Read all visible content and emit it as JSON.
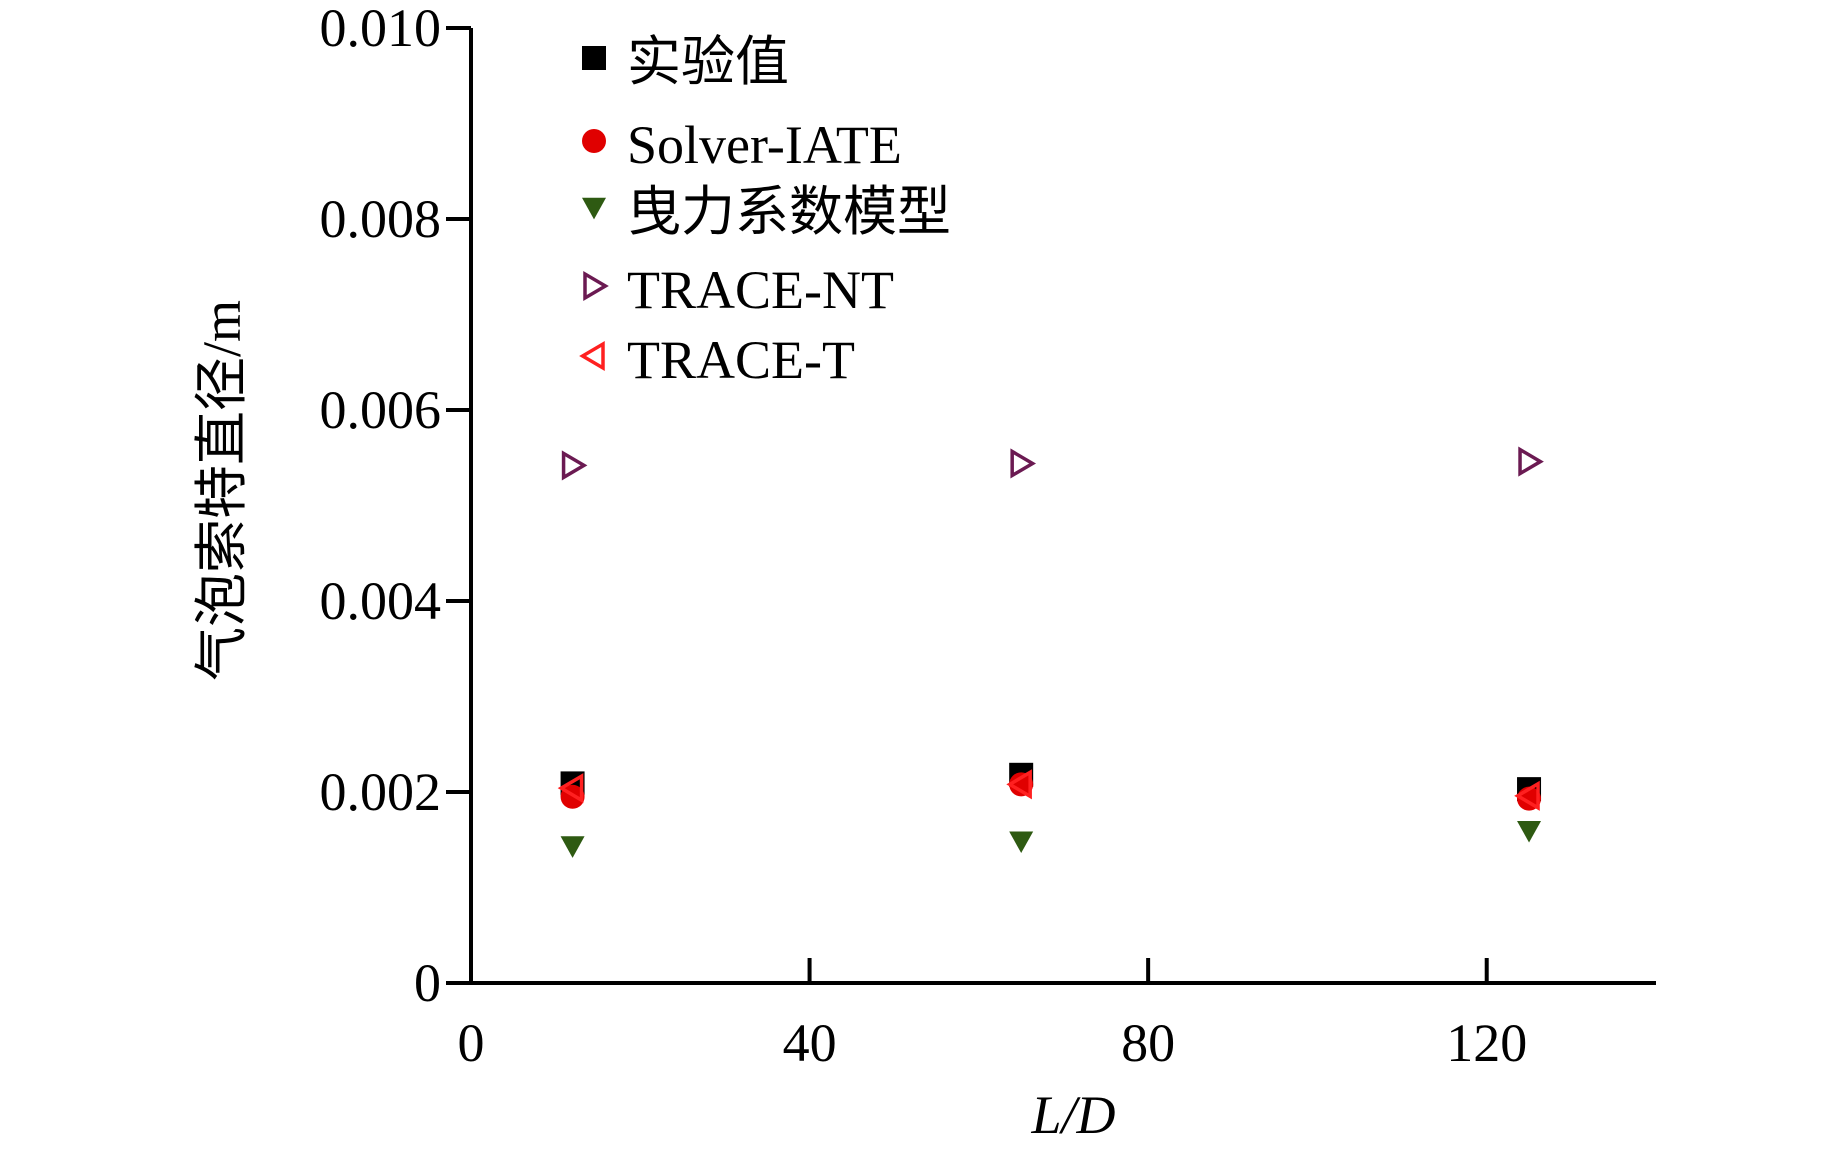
{
  "chart_data": {
    "type": "scatter",
    "xlabel": "L/D",
    "ylabel": "气泡索特直径/m",
    "xlim": [
      0,
      140
    ],
    "ylim": [
      0,
      0.01
    ],
    "x_ticks": [
      0,
      40,
      80,
      120
    ],
    "x_tick_labels": [
      "0",
      "40",
      "80",
      "120"
    ],
    "y_ticks": [
      0,
      0.002,
      0.004,
      0.006,
      0.008,
      0.01
    ],
    "y_tick_labels": [
      "0",
      "0.002",
      "0.004",
      "0.006",
      "0.008",
      "0.010"
    ],
    "grid": false,
    "legend_position": "top-left",
    "series": [
      {
        "name": "实验值",
        "marker": "square",
        "color": "#000000",
        "x": [
          12,
          65,
          125
        ],
        "y": [
          0.00209,
          0.00218,
          0.00203
        ]
      },
      {
        "name": "Solver-IATE",
        "marker": "circle",
        "color": "#e00000",
        "x": [
          12,
          65,
          125
        ],
        "y": [
          0.00195,
          0.00208,
          0.00193
        ]
      },
      {
        "name": "曳力系数模型",
        "marker": "triangle-down",
        "color": "#2e5a12",
        "x": [
          12,
          65,
          125
        ],
        "y": [
          0.00143,
          0.00148,
          0.00159
        ]
      },
      {
        "name": "TRACE-NT",
        "marker": "triangle-right-open",
        "color": "#6b1a52",
        "x": [
          12,
          65,
          125
        ],
        "y": [
          0.00542,
          0.00544,
          0.00546
        ]
      },
      {
        "name": "TRACE-T",
        "marker": "triangle-left-open",
        "color": "#ff2020",
        "x": [
          12,
          65,
          125
        ],
        "y": [
          0.00204,
          0.00208,
          0.00196
        ]
      }
    ]
  }
}
